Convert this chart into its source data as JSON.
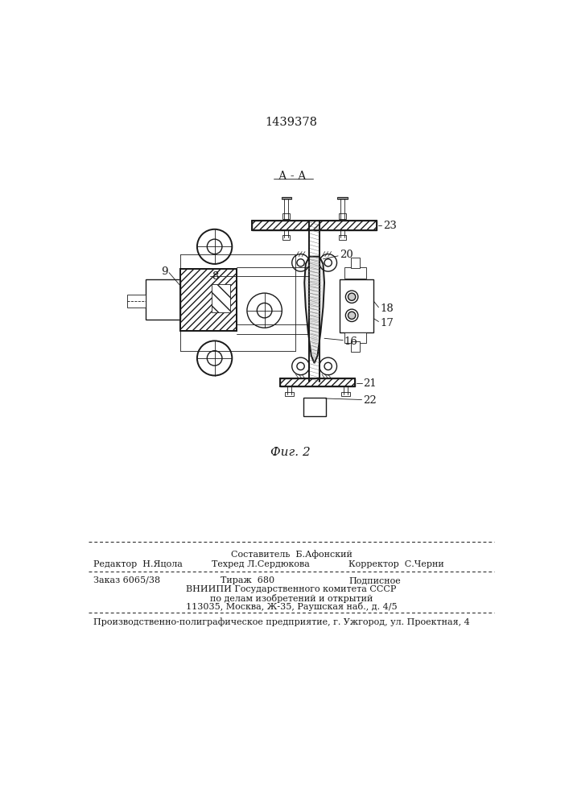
{
  "patent_number": "1439378",
  "fig_label": "Фиг. 2",
  "section_label": "А - А",
  "background_color": "#ffffff",
  "line_color": "#1a1a1a",
  "footer": {
    "sostavitel": "Составитель  Б.Афонский",
    "redaktor": "Редактор  Н.Яцола",
    "tekhred": "Техред Л.Сердюкова",
    "korrektor": "Корректор  С.Черни",
    "zakaz": "Заказ 6065/38",
    "tirazh": "Тираж  680",
    "podpisnoe": "Подписное",
    "vniipи": "ВНИИПИ Государственного комитета СССР",
    "po_delam": "по делам изобретений и открытий",
    "address": "113035, Москва, Ж-35, Раушская наб., д. 4/5",
    "predpriyatie": "Производственно-полиграфическое предприятие, г. Ужгород, ул. Проектная, 4"
  }
}
